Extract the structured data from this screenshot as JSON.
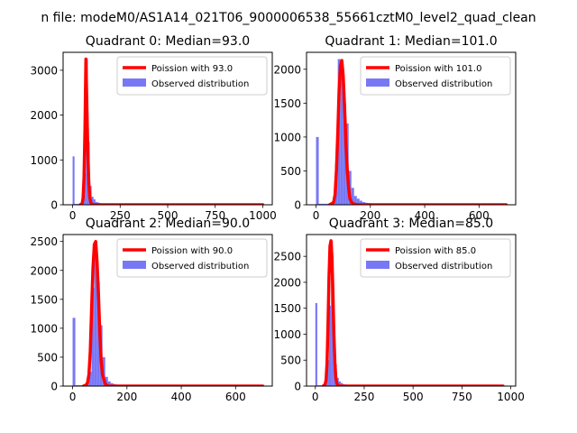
{
  "suptitle": "n file: modeM0/AS1A14_021T06_9000006538_55661cztM0_level2_quad_clean",
  "colors": {
    "poisson": "#ff0000",
    "observed": "#7878f5"
  },
  "chart_data": [
    {
      "type": "bar",
      "title": "Quadrant 0: Median=93.0",
      "xlim": [
        -50,
        1050
      ],
      "ylim": [
        0,
        3400
      ],
      "xticks": [
        0,
        250,
        500,
        750,
        1000
      ],
      "yticks": [
        0,
        1000,
        2000,
        3000
      ],
      "xtick_labels": [
        "0",
        "250",
        "500",
        "750",
        "1000"
      ],
      "ytick_labels": [
        "0",
        "1000",
        "2000",
        "3000"
      ],
      "legend": [
        "Poission with 93.0",
        "Observed distribution"
      ],
      "legend_loc": "upper right",
      "observed": {
        "bin_width": 10,
        "bins": [
          [
            0,
            1080
          ],
          [
            10,
            20
          ],
          [
            20,
            20
          ],
          [
            30,
            20
          ],
          [
            40,
            20
          ],
          [
            50,
            80
          ],
          [
            60,
            700
          ],
          [
            70,
            3250
          ],
          [
            80,
            1400
          ],
          [
            90,
            420
          ],
          [
            100,
            180
          ],
          [
            110,
            120
          ],
          [
            120,
            60
          ],
          [
            130,
            50
          ],
          [
            140,
            35
          ],
          [
            150,
            25
          ],
          [
            160,
            20
          ],
          [
            170,
            15
          ],
          [
            180,
            12
          ],
          [
            190,
            10
          ],
          [
            200,
            8
          ],
          [
            210,
            6
          ],
          [
            220,
            5
          ],
          [
            230,
            4
          ],
          [
            240,
            3
          ],
          [
            250,
            3
          ],
          [
            260,
            2
          ],
          [
            270,
            2
          ],
          [
            280,
            2
          ]
        ],
        "tail_to": 1000,
        "tail_value": 2
      },
      "poisson": {
        "x": [
          40,
          50,
          55,
          60,
          65,
          70,
          75,
          80,
          85,
          90,
          95,
          100,
          110,
          120,
          1000
        ],
        "y": [
          0,
          20,
          150,
          600,
          1700,
          3250,
          2200,
          1200,
          500,
          180,
          60,
          20,
          5,
          0,
          0
        ]
      }
    },
    {
      "type": "bar",
      "title": "Quadrant 1: Median=101.0",
      "xlim": [
        -35,
        735
      ],
      "ylim": [
        0,
        2250
      ],
      "xticks": [
        0,
        200,
        400,
        600
      ],
      "yticks": [
        0,
        500,
        1000,
        1500,
        2000
      ],
      "xtick_labels": [
        "0",
        "200",
        "400",
        "600"
      ],
      "ytick_labels": [
        "0",
        "500",
        "1000",
        "1500",
        "2000"
      ],
      "legend": [
        "Poission with 101.0",
        "Observed distribution"
      ],
      "legend_loc": "upper right",
      "observed": {
        "bin_width": 10,
        "bins": [
          [
            0,
            1000
          ],
          [
            10,
            15
          ],
          [
            20,
            15
          ],
          [
            30,
            15
          ],
          [
            40,
            15
          ],
          [
            50,
            20
          ],
          [
            60,
            40
          ],
          [
            70,
            600
          ],
          [
            80,
            2150
          ],
          [
            90,
            1900
          ],
          [
            100,
            1500
          ],
          [
            110,
            1200
          ],
          [
            120,
            500
          ],
          [
            130,
            250
          ],
          [
            140,
            130
          ],
          [
            150,
            90
          ],
          [
            160,
            60
          ],
          [
            170,
            40
          ],
          [
            180,
            30
          ],
          [
            190,
            25
          ],
          [
            200,
            20
          ],
          [
            210,
            15
          ],
          [
            220,
            12
          ],
          [
            230,
            10
          ],
          [
            240,
            8
          ],
          [
            250,
            6
          ],
          [
            260,
            5
          ],
          [
            270,
            4
          ],
          [
            280,
            3
          ],
          [
            290,
            3
          ]
        ],
        "tail_to": 700,
        "tail_value": 2
      },
      "poisson": {
        "x": [
          50,
          60,
          65,
          70,
          75,
          80,
          85,
          90,
          95,
          100,
          105,
          110,
          115,
          120,
          125,
          130,
          140,
          150,
          700
        ],
        "y": [
          0,
          20,
          40,
          150,
          500,
          1050,
          1700,
          2050,
          2130,
          1900,
          1450,
          900,
          500,
          250,
          90,
          40,
          10,
          0,
          0
        ]
      }
    },
    {
      "type": "bar",
      "title": "Quadrant 2: Median=90.0",
      "xlim": [
        -35,
        735
      ],
      "ylim": [
        0,
        2620
      ],
      "xticks": [
        0,
        200,
        400,
        600
      ],
      "yticks": [
        0,
        500,
        1000,
        1500,
        2000,
        2500
      ],
      "xtick_labels": [
        "0",
        "200",
        "400",
        "600"
      ],
      "ytick_labels": [
        "0",
        "500",
        "1000",
        "1500",
        "2000",
        "2500"
      ],
      "legend": [
        "Poission with 90.0",
        "Observed distribution"
      ],
      "legend_loc": "upper right",
      "observed": {
        "bin_width": 10,
        "bins": [
          [
            0,
            1180
          ],
          [
            10,
            15
          ],
          [
            20,
            15
          ],
          [
            30,
            15
          ],
          [
            40,
            15
          ],
          [
            50,
            40
          ],
          [
            60,
            250
          ],
          [
            70,
            1700
          ],
          [
            80,
            2500
          ],
          [
            90,
            1800
          ],
          [
            100,
            1050
          ],
          [
            110,
            500
          ],
          [
            120,
            160
          ],
          [
            130,
            80
          ],
          [
            140,
            50
          ],
          [
            150,
            35
          ],
          [
            160,
            25
          ],
          [
            170,
            20
          ],
          [
            180,
            15
          ],
          [
            190,
            12
          ],
          [
            200,
            10
          ],
          [
            210,
            8
          ],
          [
            220,
            6
          ],
          [
            230,
            5
          ],
          [
            240,
            4
          ],
          [
            250,
            3
          ],
          [
            260,
            3
          ],
          [
            270,
            2
          ]
        ],
        "tail_to": 700,
        "tail_value": 2
      },
      "poisson": {
        "x": [
          40,
          50,
          55,
          60,
          65,
          70,
          75,
          80,
          85,
          90,
          95,
          100,
          105,
          110,
          120,
          130,
          700
        ],
        "y": [
          0,
          20,
          60,
          200,
          600,
          1350,
          2050,
          2450,
          2500,
          2150,
          1600,
          950,
          450,
          200,
          40,
          0,
          0
        ]
      }
    },
    {
      "type": "bar",
      "title": "Quadrant 3: Median=85.0",
      "xlim": [
        -45,
        1025
      ],
      "ylim": [
        0,
        2920
      ],
      "xticks": [
        0,
        250,
        500,
        750,
        1000
      ],
      "yticks": [
        0,
        500,
        1000,
        1500,
        2000,
        2500
      ],
      "xtick_labels": [
        "0",
        "250",
        "500",
        "750",
        "1000"
      ],
      "ytick_labels": [
        "0",
        "500",
        "1000",
        "1500",
        "2000",
        "2500"
      ],
      "legend": [
        "Poission with 85.0",
        "Observed distribution"
      ],
      "legend_loc": "upper right",
      "observed": {
        "bin_width": 10,
        "bins": [
          [
            0,
            1600
          ],
          [
            10,
            15
          ],
          [
            20,
            15
          ],
          [
            30,
            15
          ],
          [
            40,
            15
          ],
          [
            50,
            50
          ],
          [
            60,
            500
          ],
          [
            70,
            1550
          ],
          [
            80,
            2800
          ],
          [
            90,
            1300
          ],
          [
            100,
            420
          ],
          [
            110,
            160
          ],
          [
            120,
            90
          ],
          [
            130,
            60
          ],
          [
            140,
            40
          ],
          [
            150,
            30
          ],
          [
            160,
            25
          ],
          [
            170,
            20
          ],
          [
            180,
            15
          ],
          [
            190,
            12
          ],
          [
            200,
            10
          ],
          [
            210,
            8
          ],
          [
            220,
            6
          ],
          [
            230,
            5
          ],
          [
            240,
            4
          ],
          [
            250,
            3
          ],
          [
            260,
            3
          ]
        ],
        "tail_to": 960,
        "tail_value": 2
      },
      "poisson": {
        "x": [
          40,
          50,
          55,
          60,
          65,
          70,
          75,
          80,
          85,
          90,
          95,
          100,
          105,
          110,
          120,
          960
        ],
        "y": [
          0,
          30,
          120,
          450,
          1200,
          2100,
          2700,
          2800,
          2500,
          1800,
          1000,
          450,
          150,
          50,
          0,
          0
        ]
      }
    }
  ]
}
